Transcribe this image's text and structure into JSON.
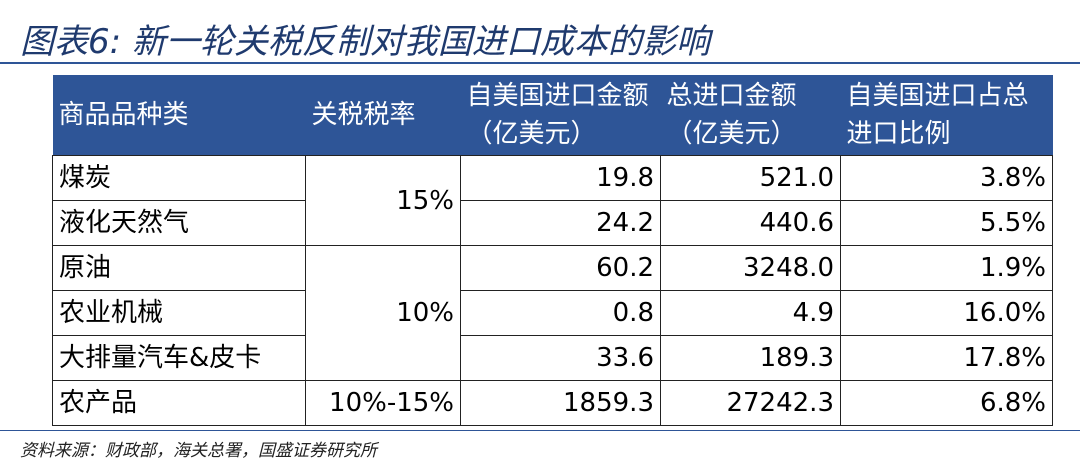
{
  "header": {
    "title": "图表6: 新一轮关税反制对我国进口成本的影响"
  },
  "table": {
    "columns": [
      "商品品种类",
      "关税税率",
      "自美国进口金额（亿美元）",
      "总进口金额（亿美元）",
      "自美国进口占总进口比例"
    ],
    "rows": [
      {
        "product": "煤炭",
        "rate": "15%",
        "us_import": "19.8",
        "total_import": "521.0",
        "share": "3.8%"
      },
      {
        "product": "液化天然气",
        "us_import": "24.2",
        "total_import": "440.6",
        "share": "5.5%"
      },
      {
        "product": "原油",
        "rate": "10%",
        "us_import": "60.2",
        "total_import": "3248.0",
        "share": "1.9%"
      },
      {
        "product": "农业机械",
        "us_import": "0.8",
        "total_import": "4.9",
        "share": "16.0%"
      },
      {
        "product": "大排量汽车&皮卡",
        "us_import": "33.6",
        "total_import": "189.3",
        "share": "17.8%"
      },
      {
        "product": "农产品",
        "rate": "10%-15%",
        "us_import": "1859.3",
        "total_import": "27242.3",
        "share": "6.8%"
      }
    ]
  },
  "footer": {
    "source": "资料来源：财政部，海关总署，国盛证券研究所"
  }
}
